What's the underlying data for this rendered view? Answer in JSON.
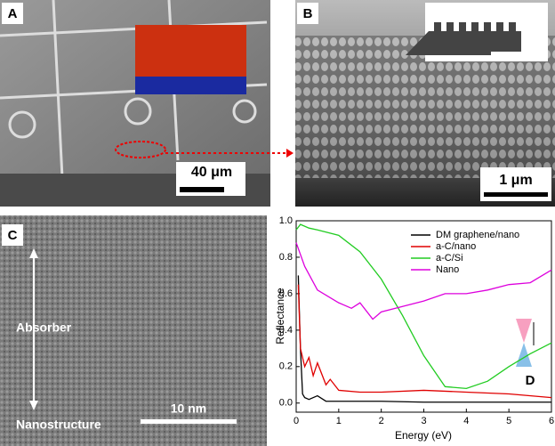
{
  "panels": {
    "a": {
      "label": "A",
      "scale": "40 μm"
    },
    "b": {
      "label": "B",
      "scale": "1 μm"
    },
    "c": {
      "label": "C",
      "scale": "10 nm",
      "top": "Absorber",
      "bottom": "Nanostructure"
    }
  },
  "chart_data": {
    "type": "line",
    "label": "D",
    "xlabel": "Energy (eV)",
    "ylabel": "Reflectance",
    "xlim": [
      0,
      6
    ],
    "ylim": [
      -0.05,
      1.0
    ],
    "xticks": [
      0,
      1,
      2,
      3,
      4,
      5,
      6
    ],
    "yticks": [
      {
        "value": 0,
        "label": "0.0"
      },
      {
        "value": 0.2,
        "label": "0.2"
      },
      {
        "value": 0.4,
        "label": "0.4"
      },
      {
        "value": 0.6,
        "label": "0.6"
      },
      {
        "value": 0.8,
        "label": "0.8"
      },
      {
        "value": 1,
        "label": "1.0"
      }
    ],
    "legend": "upper right",
    "series": [
      {
        "name": "DM graphene/nano",
        "color": "#000000",
        "x": [
          0.05,
          0.1,
          0.15,
          0.2,
          0.3,
          0.5,
          0.7,
          1,
          2,
          3,
          4,
          5,
          6
        ],
        "values": [
          0.7,
          0.3,
          0.05,
          0.03,
          0.02,
          0.04,
          0.01,
          0.01,
          0.01,
          0.005,
          0.005,
          0.005,
          0.005
        ]
      },
      {
        "name": "a-C/nano",
        "color": "#e00000",
        "x": [
          0.05,
          0.1,
          0.2,
          0.3,
          0.4,
          0.5,
          0.7,
          0.8,
          1,
          1.5,
          2,
          3,
          4,
          5,
          6
        ],
        "values": [
          0.65,
          0.3,
          0.2,
          0.25,
          0.15,
          0.22,
          0.1,
          0.13,
          0.07,
          0.06,
          0.06,
          0.07,
          0.06,
          0.05,
          0.03
        ]
      },
      {
        "name": "a-C/Si",
        "color": "#22cc22",
        "x": [
          0,
          0.1,
          0.3,
          0.5,
          1,
          1.5,
          2,
          2.5,
          3,
          3.5,
          4,
          4.5,
          5,
          5.5,
          6
        ],
        "values": [
          0.95,
          0.98,
          0.96,
          0.95,
          0.92,
          0.83,
          0.68,
          0.48,
          0.26,
          0.09,
          0.08,
          0.12,
          0.2,
          0.27,
          0.33
        ]
      },
      {
        "name": "Nano",
        "color": "#dd00dd",
        "x": [
          0,
          0.2,
          0.5,
          1,
          1.3,
          1.5,
          1.8,
          2,
          2.5,
          3,
          3.5,
          4,
          4.5,
          5,
          5.5,
          6
        ],
        "values": [
          0.88,
          0.75,
          0.62,
          0.55,
          0.52,
          0.55,
          0.46,
          0.5,
          0.53,
          0.56,
          0.6,
          0.6,
          0.62,
          0.65,
          0.66,
          0.73
        ]
      }
    ]
  }
}
